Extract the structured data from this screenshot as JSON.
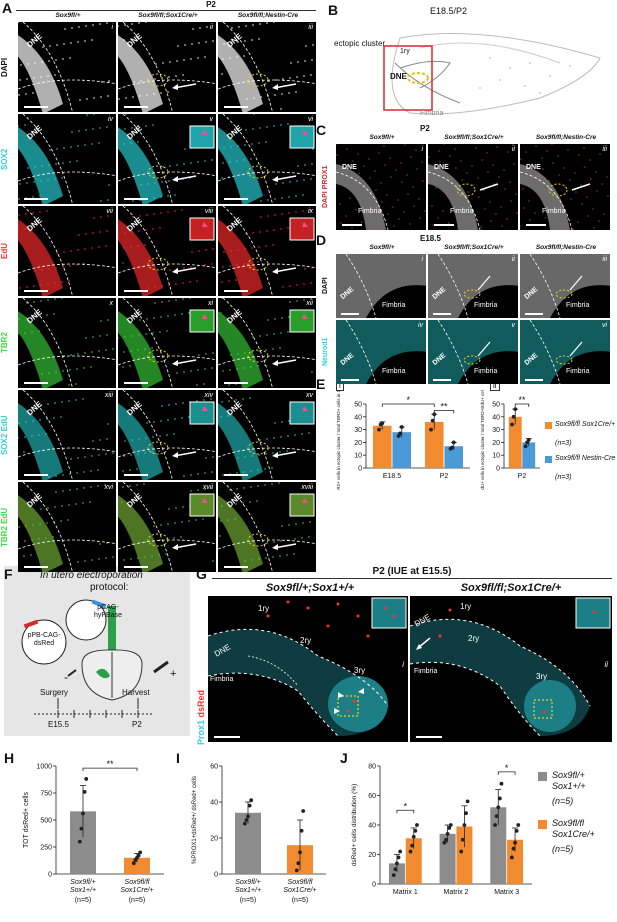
{
  "panelA": {
    "letter": "A",
    "stage": "P2",
    "cols": [
      "Sox9fl/+",
      "Sox9fl/fl;Sox1Cre/+",
      "Sox9fl/fl;Nestin-Cre"
    ],
    "rows": [
      {
        "label": "DAPI",
        "color": "#ffffff",
        "romans": [
          "i",
          "ii",
          "iii"
        ],
        "tissue": "#cfcfcf"
      },
      {
        "label": "SOX2",
        "color": "#2ad4d9",
        "romans": [
          "iv",
          "v",
          "vi"
        ],
        "tissue": "#1fa5a9"
      },
      {
        "label": "EdU",
        "color": "#ff3030",
        "romans": [
          "vii",
          "viii",
          "ix"
        ],
        "tissue": "#c42222"
      },
      {
        "label": "TBR2",
        "color": "#3adf3a",
        "romans": [
          "x",
          "xi",
          "xii"
        ],
        "tissue": "#2a9e2a"
      },
      {
        "label": "SOX2 EdU",
        "color": "#2ad4d9",
        "romans": [
          "xiii",
          "xiv",
          "xv"
        ],
        "tissue": "#1a8f90"
      },
      {
        "label": "TBR2 EdU",
        "color": "#3adf3a",
        "romans": [
          "xvi",
          "xvii",
          "xviii"
        ],
        "tissue": "#5a8a2a"
      }
    ],
    "dne": "DNE"
  },
  "panelB": {
    "letter": "B",
    "stage": "E18.5/P2",
    "ectopic": "ectopic cluster",
    "ry1": "1ry",
    "dne": "DNE",
    "fimbria": "Fimbria"
  },
  "panelC": {
    "letter": "C",
    "stage": "P2",
    "cols": [
      "Sox9fl/+",
      "Sox9fl/fl;Sox1Cre/+",
      "Sox9fl/fl;Nestin-Cre"
    ],
    "romans": [
      "i",
      "ii",
      "iii"
    ],
    "rowlabel": "DAPI PROX1",
    "dne": "DNE",
    "fimbria": "Fimbria"
  },
  "panelD": {
    "letter": "D",
    "stage": "E18.5",
    "cols": [
      "Sox9fl/+",
      "Sox9fl/fl;Sox1Cre/+",
      "Sox9fl/fl;Nestin-Cre"
    ],
    "rows": [
      {
        "label": "DAPI",
        "romans": [
          "i",
          "ii",
          "iii"
        ]
      },
      {
        "label": "Neurod1",
        "romans": [
          "iv",
          "v",
          "vi"
        ]
      }
    ],
    "dne": "DNE",
    "fimbria": "Fimbria"
  },
  "panelE": {
    "letter": "E",
    "sub_i": "i",
    "sub_ii": "ii",
    "ylabel_i": "%TBR2+ cells in ectopic cluster / total TBR2+ cells in 1ry matrix",
    "ylabel_ii": "%TBR2+EdU+ cells in ectopic cluster / total TBR2+EdU+ cells in 1ry matrix",
    "legend": [
      {
        "name": "Sox9fl/fl Sox1Cre/+",
        "n": "(n=3)",
        "color": "#f28a30"
      },
      {
        "name": "Sox9fl/fl Nestin-Cre",
        "n": "(n=3)",
        "color": "#4a9ad8"
      }
    ],
    "sig1": "*",
    "sig2": "**",
    "sig3": "**"
  },
  "panelF": {
    "letter": "F",
    "title1": "In utero electroporation",
    "title2": "protocol:",
    "plasmid1": "pCAG-hyPBase",
    "plasmid2": "pPB-CAG-dsRed",
    "surgery": "Surgery",
    "harvest": "Harvest",
    "e155": "E15.5",
    "p2": "P2",
    "minus": "-",
    "plus": "+"
  },
  "panelG": {
    "letter": "G",
    "title": "P2 (IUE at E15.5)",
    "left": "Sox9fl/+;Sox1+/+",
    "right": "Sox9fl/fl;Sox1Cre/+",
    "ry1": "1ry",
    "ry2": "2ry",
    "ry3": "3ry",
    "dne": "DNE",
    "fimbria": "Fimbria",
    "rowlabel_prox": "Prox1",
    "rowlabel_ds": "dsRed",
    "roman_i": "i",
    "roman_ii": "ii"
  },
  "colors": {
    "grey": "#8c8c8c",
    "orange": "#f28a30",
    "blue": "#4a9ad8"
  },
  "chart_data": [
    {
      "id": "E-i",
      "type": "bar",
      "categories": [
        "E18.5",
        "P2"
      ],
      "ylabel": "%TBR2+ cells in ectopic cluster / total TBR2+ cells in 1ry matrix",
      "ylim": [
        0,
        50
      ],
      "yticks": [
        "0",
        "10",
        "20",
        "30",
        "40",
        "50"
      ],
      "series": [
        {
          "name": "Sox9fl/fl Sox1Cre/+",
          "values": [
            33,
            36
          ],
          "err": [
            3,
            6
          ],
          "points": [
            [
              30,
              34,
              35
            ],
            [
              30,
              37,
              42
            ]
          ]
        },
        {
          "name": "Sox9fl/fl Nestin-Cre",
          "values": [
            28,
            17
          ],
          "err": [
            4,
            3
          ],
          "points": [
            [
              25,
              27,
              32
            ],
            [
              15,
              16,
              20
            ]
          ]
        }
      ]
    },
    {
      "id": "E-ii",
      "type": "bar",
      "categories": [
        "P2"
      ],
      "ylabel": "%TBR2+EdU+ cells in ectopic cluster / total TBR2+EdU+ cells in 1ry matrix",
      "ylim": [
        0,
        50
      ],
      "yticks": [
        "0",
        "10",
        "20",
        "30",
        "40",
        "50"
      ],
      "series": [
        {
          "name": "Sox9fl/fl Sox1Cre/+",
          "values": [
            40
          ],
          "err": [
            6
          ],
          "points": [
            [
              34,
              40,
              46
            ]
          ]
        },
        {
          "name": "Sox9fl/fl Nestin-Cre",
          "values": [
            20
          ],
          "err": [
            3
          ],
          "points": [
            [
              17,
              20,
              22
            ]
          ]
        }
      ]
    },
    {
      "id": "H",
      "letter": "H",
      "type": "bar",
      "ylabel": "TOT dsRed+ cells",
      "ylim": [
        0,
        1000
      ],
      "yticks": [
        "0",
        "250",
        "500",
        "750",
        "1000"
      ],
      "categories": [
        "Sox9fl/+ Sox1+/+",
        "Sox9fl/fl Sox1Cre/+"
      ],
      "ns": [
        "(n=5)",
        "(n=5)"
      ],
      "values": [
        580,
        150
      ],
      "err": [
        240,
        40
      ],
      "colors": [
        "#8c8c8c",
        "#f28a30"
      ],
      "points": [
        [
          300,
          420,
          560,
          760,
          880
        ],
        [
          100,
          130,
          150,
          170,
          200
        ]
      ],
      "sig": "**"
    },
    {
      "id": "I",
      "letter": "I",
      "type": "bar",
      "ylabel": "%PROX1+dsRed+/ dsRed+ cells",
      "ylim": [
        0,
        60
      ],
      "yticks": [
        "0",
        "20",
        "40",
        "60"
      ],
      "categories": [
        "Sox9fl/+ Sox1+/+",
        "Sox9fl/fl Sox1Cre/+"
      ],
      "ns": [
        "(n=5)",
        "(n=5)"
      ],
      "values": [
        34,
        16
      ],
      "err": [
        6,
        14
      ],
      "colors": [
        "#8c8c8c",
        "#f28a30"
      ],
      "points": [
        [
          28,
          30,
          32,
          38,
          41
        ],
        [
          2,
          6,
          12,
          24,
          35
        ]
      ]
    },
    {
      "id": "J",
      "letter": "J",
      "type": "bar",
      "ylabel": "dsRed+ cells distribution (%)",
      "ylim": [
        0,
        80
      ],
      "yticks": [
        "0",
        "20",
        "40",
        "60",
        "80"
      ],
      "categories": [
        "Matrix 1",
        "Matrix 2",
        "Matrix 3"
      ],
      "series": [
        {
          "name": "Sox9fl/+ Sox1+/+",
          "n": "(n=5)",
          "color": "#8c8c8c",
          "values": [
            14,
            34,
            52
          ],
          "err": [
            6,
            6,
            12
          ],
          "points": [
            [
              6,
              10,
              14,
              18,
              22
            ],
            [
              28,
              30,
              34,
              38,
              40
            ],
            [
              40,
              46,
              52,
              58,
              68
            ]
          ]
        },
        {
          "name": "Sox9fl/fl Sox1Cre/+",
          "n": "(n=5)",
          "color": "#f28a30",
          "values": [
            31,
            39,
            30
          ],
          "err": [
            7,
            14,
            8
          ],
          "points": [
            [
              22,
              26,
              32,
              36,
              40
            ],
            [
              22,
              30,
              40,
              48,
              56
            ],
            [
              18,
              24,
              28,
              36,
              40
            ]
          ]
        }
      ],
      "sig": [
        "*",
        "",
        "*"
      ]
    }
  ]
}
